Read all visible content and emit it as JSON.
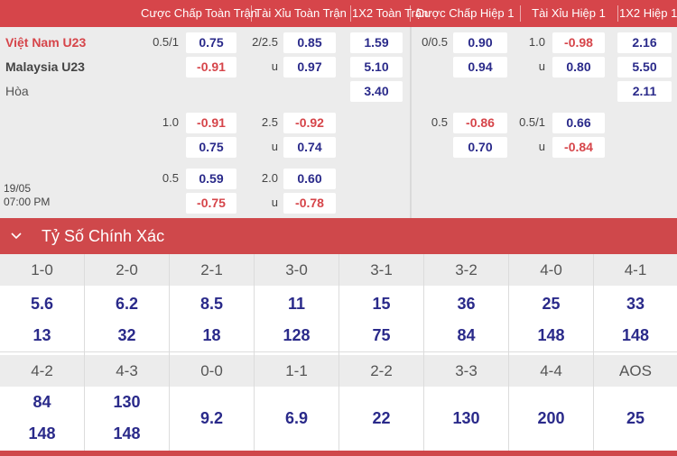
{
  "header": {
    "columns": [
      "Cược Chấp Toàn Trận",
      "Tài Xỉu Toàn Trận",
      "1X2 Toàn Trận",
      "Cược Chấp Hiệp 1",
      "Tài Xỉu Hiệp 1",
      "1X2 Hiệp 1"
    ]
  },
  "match": {
    "home": "Việt Nam U23",
    "away": "Malaysia U23",
    "draw": "Hòa",
    "date": "19/05",
    "time": "07:00 PM"
  },
  "odds": {
    "row1": {
      "ft_hdp_line": "0.5/1",
      "ft_hdp_home": "0.75",
      "ft_hdp_away": "-0.91",
      "ft_ou_line": "2/2.5",
      "ft_ou_over": "0.85",
      "ft_ou_u": "u",
      "ft_ou_under": "0.97",
      "ft_1x2_home": "1.59",
      "ft_1x2_away": "5.10",
      "ft_1x2_draw": "3.40",
      "h1_hdp_line": "0/0.5",
      "h1_hdp_home": "0.90",
      "h1_hdp_away": "0.94",
      "h1_ou_line": "1.0",
      "h1_ou_over": "-0.98",
      "h1_ou_u": "u",
      "h1_ou_under": "0.80",
      "h1_1x2_home": "2.16",
      "h1_1x2_away": "5.50",
      "h1_1x2_draw": "2.11"
    },
    "row2": {
      "ft_hdp_line": "1.0",
      "ft_hdp_home": "-0.91",
      "ft_hdp_away": "0.75",
      "ft_ou_line": "2.5",
      "ft_ou_over": "-0.92",
      "ft_ou_u": "u",
      "ft_ou_under": "0.74",
      "h1_hdp_line": "0.5",
      "h1_hdp_home": "-0.86",
      "h1_hdp_away": "0.70",
      "h1_ou_line": "0.5/1",
      "h1_ou_over": "0.66",
      "h1_ou_u": "u",
      "h1_ou_under": "-0.84"
    },
    "row3": {
      "ft_hdp_line": "0.5",
      "ft_hdp_home": "0.59",
      "ft_hdp_away": "-0.75",
      "ft_ou_line": "2.0",
      "ft_ou_over": "0.60",
      "ft_ou_u": "u",
      "ft_ou_under": "-0.78"
    }
  },
  "correct_score": {
    "title": "Tỷ Số Chính Xác",
    "row1": [
      {
        "score": "1-0",
        "home": "5.6",
        "away": "13"
      },
      {
        "score": "2-0",
        "home": "6.2",
        "away": "32"
      },
      {
        "score": "2-1",
        "home": "8.5",
        "away": "18"
      },
      {
        "score": "3-0",
        "home": "11",
        "away": "128"
      },
      {
        "score": "3-1",
        "home": "15",
        "away": "75"
      },
      {
        "score": "3-2",
        "home": "36",
        "away": "84"
      },
      {
        "score": "4-0",
        "home": "25",
        "away": "148"
      },
      {
        "score": "4-1",
        "home": "33",
        "away": "148"
      }
    ],
    "row2": [
      {
        "score": "4-2",
        "home": "84",
        "away": "148"
      },
      {
        "score": "4-3",
        "home": "130",
        "away": "148"
      },
      {
        "score": "0-0",
        "value": "9.2"
      },
      {
        "score": "1-1",
        "value": "6.9"
      },
      {
        "score": "2-2",
        "value": "22"
      },
      {
        "score": "3-3",
        "value": "130"
      },
      {
        "score": "4-4",
        "value": "200"
      },
      {
        "score": "AOS",
        "value": "25"
      }
    ]
  },
  "colors": {
    "header_red": "#d6454a",
    "negative_red": "#d6454a",
    "positive_navy": "#2a2a8a",
    "pane_gray": "#ececec"
  }
}
